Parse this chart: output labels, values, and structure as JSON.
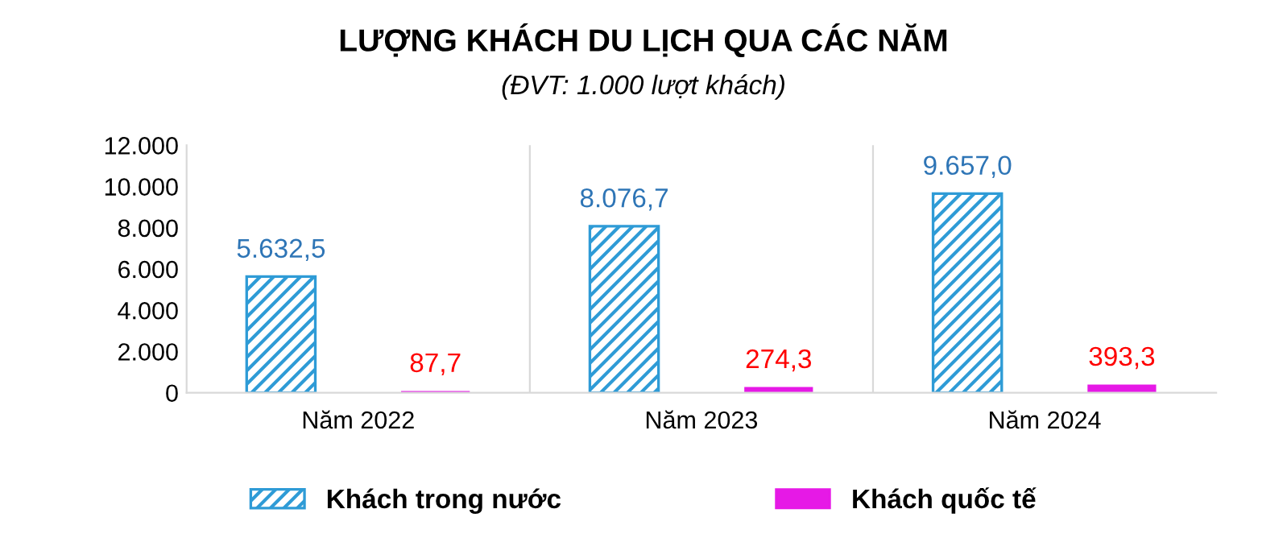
{
  "chart_data": {
    "type": "bar",
    "title": "LƯỢNG KHÁCH DU LỊCH QUA CÁC NĂM",
    "subtitle": "(ĐVT: 1.000 lượt khách)",
    "categories": [
      "Năm 2022",
      "Năm 2023",
      "Năm 2024"
    ],
    "series": [
      {
        "name": "Khách trong nước",
        "color": "#2e9bd6",
        "values": [
          5632.5,
          8076.7,
          9657.0
        ],
        "value_labels": [
          "5.632,5",
          "8.076,7",
          "9.657,0"
        ]
      },
      {
        "name": "Khách quốc tế",
        "color": "#e619e6",
        "values": [
          87.7,
          274.3,
          393.3
        ],
        "value_labels": [
          "87,7",
          "274,3",
          "393,3"
        ]
      }
    ],
    "ylim": [
      0,
      12000
    ],
    "yticks": [
      {
        "value": 0,
        "label": "0"
      },
      {
        "value": 2000,
        "label": "2.000"
      },
      {
        "value": 4000,
        "label": "4.000"
      },
      {
        "value": 6000,
        "label": "6.000"
      },
      {
        "value": 8000,
        "label": "8.000"
      },
      {
        "value": 10000,
        "label": "10.000"
      },
      {
        "value": 12000,
        "label": "12.000"
      }
    ],
    "legend": "bottom",
    "grid": false
  }
}
